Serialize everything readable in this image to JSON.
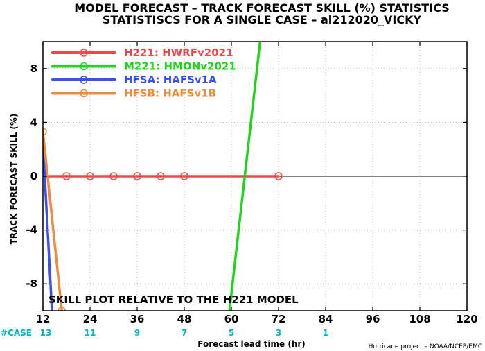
{
  "chart_data": {
    "type": "line",
    "title": "MODEL FORECAST – TRACK FORECAST SKILL (%) STATISTICS",
    "subtitle": "STATISTISCS FOR A SINGLE CASE – al212020_VICKY",
    "xlabel": "Forecast lead time (hr)",
    "ylabel": "TRACK FORECAST SKILL (%)",
    "xlim": [
      12,
      120
    ],
    "ylim": [
      -10,
      10
    ],
    "x_ticks": [
      12,
      24,
      36,
      48,
      60,
      72,
      84,
      96,
      108,
      120
    ],
    "y_ticks": [
      -8,
      -4,
      0,
      4,
      8
    ],
    "grid": true,
    "legend_position": "top-left",
    "annotation": "SKILL PLOT RELATIVE TO THE H221 MODEL",
    "case_label": "#CASE",
    "case_counts": [
      {
        "x": 12,
        "n": "13"
      },
      {
        "x": 24,
        "n": "11"
      },
      {
        "x": 36,
        "n": "9"
      },
      {
        "x": 48,
        "n": "7"
      },
      {
        "x": 60,
        "n": "5"
      },
      {
        "x": 72,
        "n": "3"
      },
      {
        "x": 84,
        "n": "1"
      }
    ],
    "credit": "Hurricane project – NOAA/NCEP/EMC",
    "series": [
      {
        "name": "H221: HWRFv2021",
        "color": "#f04848",
        "markers": true,
        "x": [
          12,
          18,
          24,
          30,
          36,
          42,
          48,
          72
        ],
        "y": [
          0,
          0,
          0,
          0,
          0,
          0,
          0,
          0
        ]
      },
      {
        "name": "M221: HMONv2021",
        "color": "#1ed41e",
        "markers": false,
        "x": [
          59.5,
          67.5
        ],
        "y": [
          -10,
          10.5
        ]
      },
      {
        "name": "HFSA: HAFSv1A",
        "color": "#3c50f0",
        "markers": false,
        "x": [
          12,
          14.3
        ],
        "y": [
          2.5,
          -10
        ]
      },
      {
        "name": "HFSB: HAFSv1B",
        "color": "#f08a3c",
        "markers": true,
        "x": [
          12,
          16.8
        ],
        "y": [
          3.3,
          -10
        ]
      }
    ],
    "colors": {
      "case_text": "#00b4c8",
      "zero_line": "#000000",
      "grid": "#b4b4b4"
    }
  }
}
